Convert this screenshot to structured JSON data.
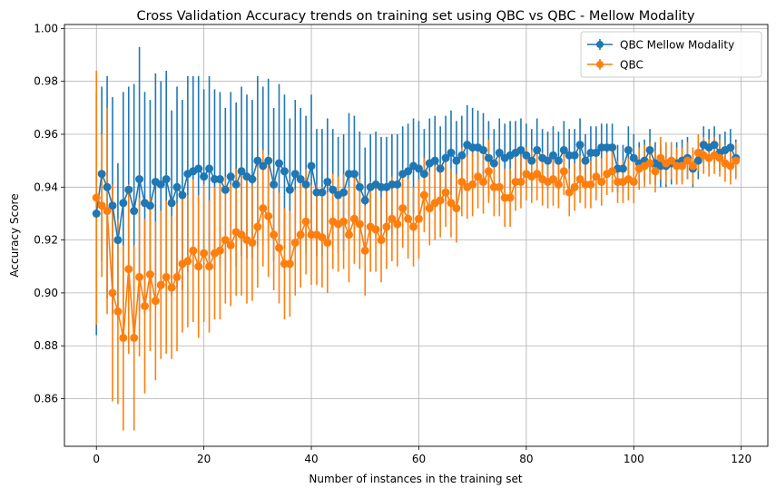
{
  "chart_data": {
    "type": "line",
    "title": "Cross Validation Accuracy trends on training set using QBC vs QBC - Mellow Modality",
    "xlabel": "Number of instances in the training set",
    "ylabel": "Accuracy Score",
    "xlim": [
      -5.95,
      124.95
    ],
    "ylim": [
      0.842,
      1.0015
    ],
    "xticks": [
      0,
      20,
      40,
      60,
      80,
      100,
      120
    ],
    "yticks": [
      0.86,
      0.88,
      0.9,
      0.92,
      0.94,
      0.96,
      0.98,
      1.0
    ],
    "xtick_labels": [
      "0",
      "20",
      "40",
      "60",
      "80",
      "100",
      "120"
    ],
    "ytick_labels": [
      "0.86",
      "0.88",
      "0.90",
      "0.92",
      "0.94",
      "0.96",
      "0.98",
      "1.00"
    ],
    "grid": true,
    "legend_position": "top-right",
    "series": [
      {
        "name": "QBC Mellow Modality",
        "color": "#1f77b4",
        "marker": "circle",
        "x": [
          0,
          1,
          2,
          3,
          4,
          5,
          6,
          7,
          8,
          9,
          10,
          11,
          12,
          13,
          14,
          15,
          16,
          17,
          18,
          19,
          20,
          21,
          22,
          23,
          24,
          25,
          26,
          27,
          28,
          29,
          30,
          31,
          32,
          33,
          34,
          35,
          36,
          37,
          38,
          39,
          40,
          41,
          42,
          43,
          44,
          45,
          46,
          47,
          48,
          49,
          50,
          51,
          52,
          53,
          54,
          55,
          56,
          57,
          58,
          59,
          60,
          61,
          62,
          63,
          64,
          65,
          66,
          67,
          68,
          69,
          70,
          71,
          72,
          73,
          74,
          75,
          76,
          77,
          78,
          79,
          80,
          81,
          82,
          83,
          84,
          85,
          86,
          87,
          88,
          89,
          90,
          91,
          92,
          93,
          94,
          95,
          96,
          97,
          98,
          99,
          100,
          101,
          102,
          103,
          104,
          105,
          106,
          107,
          108,
          109,
          110,
          111,
          112,
          113,
          114,
          115,
          116,
          117,
          118,
          119
        ],
        "y": [
          0.93,
          0.945,
          0.94,
          0.933,
          0.92,
          0.934,
          0.939,
          0.931,
          0.943,
          0.934,
          0.933,
          0.942,
          0.941,
          0.943,
          0.934,
          0.94,
          0.937,
          0.945,
          0.946,
          0.947,
          0.944,
          0.947,
          0.943,
          0.943,
          0.939,
          0.944,
          0.941,
          0.946,
          0.944,
          0.943,
          0.95,
          0.948,
          0.95,
          0.941,
          0.949,
          0.946,
          0.939,
          0.945,
          0.943,
          0.941,
          0.948,
          0.938,
          0.938,
          0.942,
          0.939,
          0.937,
          0.938,
          0.945,
          0.945,
          0.94,
          0.935,
          0.94,
          0.941,
          0.94,
          0.94,
          0.941,
          0.941,
          0.945,
          0.946,
          0.948,
          0.947,
          0.945,
          0.949,
          0.95,
          0.947,
          0.951,
          0.953,
          0.95,
          0.952,
          0.956,
          0.955,
          0.955,
          0.954,
          0.951,
          0.949,
          0.953,
          0.951,
          0.952,
          0.953,
          0.954,
          0.952,
          0.95,
          0.954,
          0.951,
          0.95,
          0.952,
          0.95,
          0.954,
          0.952,
          0.952,
          0.956,
          0.95,
          0.953,
          0.953,
          0.955,
          0.955,
          0.955,
          0.947,
          0.947,
          0.954,
          0.951,
          0.949,
          0.95,
          0.954,
          0.949,
          0.948,
          0.948,
          0.949,
          0.949,
          0.95,
          0.951,
          0.947,
          0.95,
          0.956,
          0.955,
          0.956,
          0.953,
          0.954,
          0.955,
          0.951
        ],
        "yerr": [
          0.046,
          0.033,
          0.042,
          0.041,
          0.029,
          0.042,
          0.039,
          0.048,
          0.05,
          0.042,
          0.04,
          0.041,
          0.039,
          0.041,
          0.035,
          0.038,
          0.036,
          0.037,
          0.036,
          0.035,
          0.033,
          0.035,
          0.034,
          0.033,
          0.031,
          0.032,
          0.031,
          0.032,
          0.031,
          0.03,
          0.032,
          0.03,
          0.031,
          0.029,
          0.03,
          0.029,
          0.027,
          0.028,
          0.027,
          0.026,
          0.027,
          0.024,
          0.024,
          0.024,
          0.023,
          0.022,
          0.022,
          0.023,
          0.022,
          0.021,
          0.02,
          0.02,
          0.02,
          0.019,
          0.019,
          0.019,
          0.019,
          0.018,
          0.018,
          0.018,
          0.018,
          0.017,
          0.017,
          0.017,
          0.016,
          0.016,
          0.016,
          0.015,
          0.015,
          0.015,
          0.015,
          0.014,
          0.014,
          0.014,
          0.013,
          0.013,
          0.013,
          0.013,
          0.012,
          0.012,
          0.012,
          0.012,
          0.012,
          0.011,
          0.011,
          0.011,
          0.011,
          0.011,
          0.01,
          0.01,
          0.01,
          0.01,
          0.01,
          0.01,
          0.009,
          0.009,
          0.009,
          0.009,
          0.009,
          0.009,
          0.009,
          0.008,
          0.008,
          0.008,
          0.008,
          0.008,
          0.008,
          0.008,
          0.008,
          0.008,
          0.008,
          0.007,
          0.007,
          0.007,
          0.007,
          0.007,
          0.007,
          0.007,
          0.007,
          0.007
        ]
      },
      {
        "name": "QBC",
        "color": "#ff7f0e",
        "marker": "circle",
        "x": [
          0,
          1,
          2,
          3,
          4,
          5,
          6,
          7,
          8,
          9,
          10,
          11,
          12,
          13,
          14,
          15,
          16,
          17,
          18,
          19,
          20,
          21,
          22,
          23,
          24,
          25,
          26,
          27,
          28,
          29,
          30,
          31,
          32,
          33,
          34,
          35,
          36,
          37,
          38,
          39,
          40,
          41,
          42,
          43,
          44,
          45,
          46,
          47,
          48,
          49,
          50,
          51,
          52,
          53,
          54,
          55,
          56,
          57,
          58,
          59,
          60,
          61,
          62,
          63,
          64,
          65,
          66,
          67,
          68,
          69,
          70,
          71,
          72,
          73,
          74,
          75,
          76,
          77,
          78,
          79,
          80,
          81,
          82,
          83,
          84,
          85,
          86,
          87,
          88,
          89,
          90,
          91,
          92,
          93,
          94,
          95,
          96,
          97,
          98,
          99,
          100,
          101,
          102,
          103,
          104,
          105,
          106,
          107,
          108,
          109,
          110,
          111,
          112,
          113,
          114,
          115,
          116,
          117,
          118,
          119
        ],
        "y": [
          0.936,
          0.933,
          0.931,
          0.9,
          0.893,
          0.883,
          0.909,
          0.883,
          0.906,
          0.895,
          0.907,
          0.897,
          0.903,
          0.906,
          0.902,
          0.906,
          0.911,
          0.912,
          0.916,
          0.91,
          0.915,
          0.91,
          0.915,
          0.916,
          0.92,
          0.918,
          0.923,
          0.922,
          0.92,
          0.919,
          0.925,
          0.932,
          0.929,
          0.922,
          0.917,
          0.911,
          0.911,
          0.919,
          0.922,
          0.927,
          0.922,
          0.922,
          0.921,
          0.919,
          0.927,
          0.926,
          0.927,
          0.922,
          0.928,
          0.926,
          0.916,
          0.925,
          0.924,
          0.92,
          0.925,
          0.928,
          0.926,
          0.932,
          0.928,
          0.925,
          0.928,
          0.937,
          0.932,
          0.934,
          0.935,
          0.938,
          0.934,
          0.932,
          0.942,
          0.94,
          0.941,
          0.944,
          0.942,
          0.946,
          0.94,
          0.94,
          0.936,
          0.936,
          0.942,
          0.942,
          0.945,
          0.944,
          0.945,
          0.943,
          0.942,
          0.943,
          0.941,
          0.946,
          0.938,
          0.94,
          0.943,
          0.941,
          0.941,
          0.944,
          0.942,
          0.945,
          0.946,
          0.942,
          0.942,
          0.943,
          0.942,
          0.947,
          0.948,
          0.949,
          0.946,
          0.951,
          0.949,
          0.95,
          0.948,
          0.948,
          0.95,
          0.948,
          0.953,
          0.952,
          0.951,
          0.952,
          0.951,
          0.949,
          0.948,
          0.95
        ],
        "yerr": [
          0.048,
          0.027,
          0.039,
          0.041,
          0.035,
          0.035,
          0.032,
          0.035,
          0.03,
          0.033,
          0.029,
          0.03,
          0.028,
          0.029,
          0.027,
          0.028,
          0.026,
          0.025,
          0.027,
          0.027,
          0.026,
          0.025,
          0.025,
          0.026,
          0.024,
          0.023,
          0.024,
          0.023,
          0.024,
          0.022,
          0.023,
          0.022,
          0.023,
          0.021,
          0.021,
          0.021,
          0.02,
          0.02,
          0.02,
          0.02,
          0.019,
          0.019,
          0.019,
          0.019,
          0.018,
          0.018,
          0.018,
          0.018,
          0.017,
          0.017,
          0.017,
          0.017,
          0.016,
          0.016,
          0.016,
          0.016,
          0.016,
          0.015,
          0.015,
          0.015,
          0.015,
          0.014,
          0.014,
          0.014,
          0.014,
          0.013,
          0.013,
          0.013,
          0.013,
          0.012,
          0.012,
          0.012,
          0.012,
          0.012,
          0.011,
          0.011,
          0.011,
          0.011,
          0.011,
          0.01,
          0.01,
          0.01,
          0.01,
          0.01,
          0.01,
          0.01,
          0.009,
          0.009,
          0.009,
          0.009,
          0.009,
          0.009,
          0.009,
          0.009,
          0.009,
          0.008,
          0.008,
          0.008,
          0.008,
          0.008,
          0.008,
          0.008,
          0.008,
          0.008,
          0.008,
          0.008,
          0.008,
          0.007,
          0.007,
          0.007,
          0.007,
          0.007,
          0.007,
          0.007,
          0.007,
          0.007,
          0.007,
          0.007,
          0.007,
          0.007
        ]
      }
    ]
  }
}
